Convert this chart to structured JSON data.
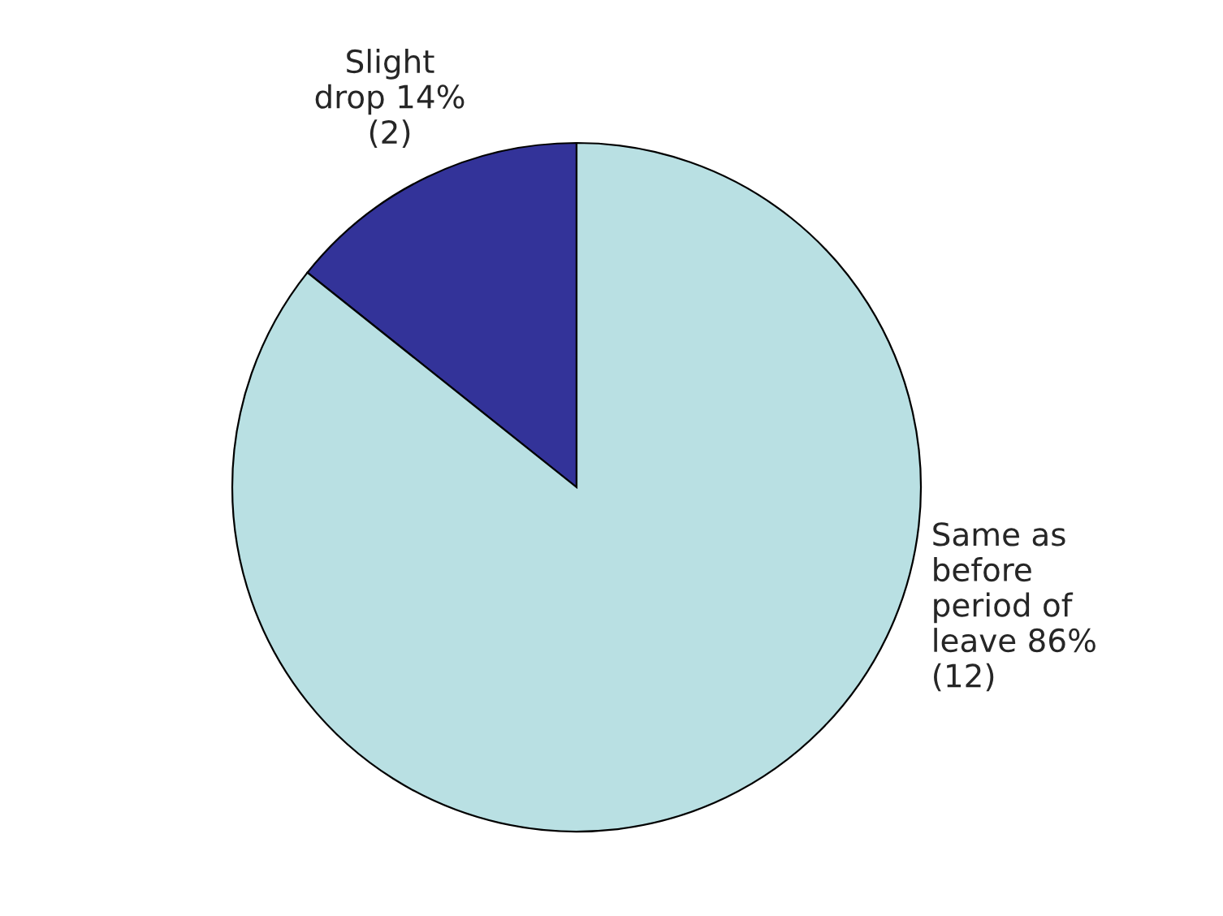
{
  "chart_data": {
    "type": "pie",
    "categories": [
      "Slight drop",
      "Same as before period of leave"
    ],
    "values": [
      2,
      12
    ],
    "value_labels": [
      "14% (2)",
      "86% (12)"
    ],
    "colors": [
      "#333399",
      "#b9e0e3"
    ]
  }
}
